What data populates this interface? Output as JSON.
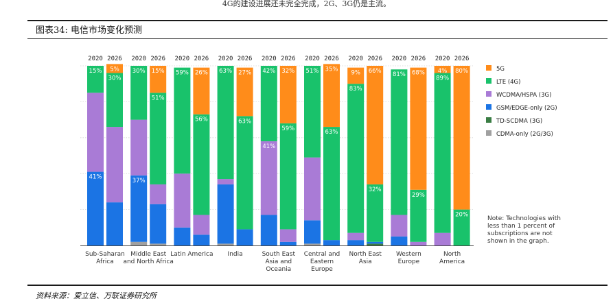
{
  "page": {
    "top_note": "4G的建设进展还未完全完成，2G、3G仍是主流。",
    "figure_title": "图表34: 电信市场变化预测",
    "source": "资料来源：爱立信、万联证券研究所"
  },
  "chart_data": {
    "type": "bar",
    "stacked": true,
    "title": "",
    "ylim": [
      0,
      100
    ],
    "years": [
      "2020",
      "2026"
    ],
    "categories": [
      "Sub-Saharan Africa",
      "Middle East and North Africa",
      "Latin America",
      "India",
      "South East Asia and Oceania",
      "Central and Eastern Europe",
      "North East Asia",
      "Western Europe",
      "North America"
    ],
    "category_labels": [
      [
        "Sub-Saharan",
        "Africa"
      ],
      [
        "Middle East",
        "and North Africa"
      ],
      [
        "Latin America"
      ],
      [
        "India"
      ],
      [
        "South East",
        "Asia and",
        "Oceania"
      ],
      [
        "Central and",
        "Eastern",
        "Europe"
      ],
      [
        "North East",
        "Asia"
      ],
      [
        "Western",
        "Europe"
      ],
      [
        "North",
        "America"
      ]
    ],
    "series": [
      {
        "name": "CDMA-only (2G/3G)",
        "color": "#a0a0a0",
        "values": [
          [
            0,
            0
          ],
          [
            2,
            1
          ],
          [
            0,
            0
          ],
          [
            1,
            0
          ],
          [
            0,
            0
          ],
          [
            1,
            0
          ],
          [
            0,
            0
          ],
          [
            0,
            0
          ],
          [
            0,
            0
          ]
        ]
      },
      {
        "name": "TD-SCDMA (3G)",
        "color": "#3a7d44",
        "values": [
          [
            0,
            0
          ],
          [
            0,
            0
          ],
          [
            0,
            0
          ],
          [
            0,
            0
          ],
          [
            0,
            0
          ],
          [
            0,
            0
          ],
          [
            0,
            1
          ],
          [
            0,
            0
          ],
          [
            0,
            0
          ]
        ]
      },
      {
        "name": "GSM/EDGE-only (2G)",
        "color": "#1b74e4",
        "values": [
          [
            41,
            24
          ],
          [
            37,
            22
          ],
          [
            10,
            6
          ],
          [
            33,
            9
          ],
          [
            17,
            2
          ],
          [
            13,
            3
          ],
          [
            3,
            1
          ],
          [
            5,
            0
          ],
          [
            0,
            0
          ]
        ]
      },
      {
        "name": "WCDMA/HSPA (3G)",
        "color": "#a97bd6",
        "values": [
          [
            44,
            42
          ],
          [
            31,
            11
          ],
          [
            30,
            11
          ],
          [
            3,
            0
          ],
          [
            41,
            7
          ],
          [
            35,
            0
          ],
          [
            4,
            0
          ],
          [
            12,
            2
          ],
          [
            7,
            0
          ]
        ]
      },
      {
        "name": "LTE (4G)",
        "color": "#19c26b",
        "values": [
          [
            15,
            30
          ],
          [
            30,
            51
          ],
          [
            59,
            56
          ],
          [
            63,
            63
          ],
          [
            42,
            59
          ],
          [
            51,
            63
          ],
          [
            83,
            32
          ],
          [
            81,
            29
          ],
          [
            89,
            20
          ]
        ]
      },
      {
        "name": "5G",
        "color": "#ff8c1a",
        "values": [
          [
            0,
            5
          ],
          [
            0,
            15
          ],
          [
            0,
            26
          ],
          [
            0,
            27
          ],
          [
            0,
            32
          ],
          [
            0,
            35
          ],
          [
            9,
            66
          ],
          [
            0,
            68
          ],
          [
            4,
            80
          ]
        ]
      }
    ],
    "data_labels": [
      [
        "15%",
        "5%"
      ],
      [
        "41%",
        "30%"
      ],
      [
        "30%",
        "15%"
      ],
      [
        "37%",
        "51%"
      ],
      [
        "59%",
        "26%"
      ],
      [
        "56%",
        ""
      ],
      [
        "63%",
        "27%"
      ],
      [
        "63%",
        ""
      ],
      [
        "42%",
        "32%"
      ],
      [
        "41%",
        "59%"
      ],
      [
        "51%",
        "35%"
      ],
      [
        "63%",
        ""
      ],
      [
        "9%",
        "66%"
      ],
      [
        "83%",
        "32%"
      ],
      [
        "81%",
        "68%"
      ],
      [
        "29%",
        ""
      ],
      [
        "4%",
        "80%"
      ],
      [
        "89%",
        "20%"
      ]
    ],
    "legend": [
      "5G",
      "LTE (4G)",
      "WCDMA/HSPA (3G)",
      "GSM/EDGE-only (2G)",
      "TD-SCDMA (3G)",
      "CDMA-only (2G/3G)"
    ],
    "legend_position": "right",
    "note": "Note: Technologies with less than 1 percent of subscriptions are not shown in the graph."
  },
  "colors": {
    "5G": "#ff8c1a",
    "LTE (4G)": "#19c26b",
    "WCDMA/HSPA (3G)": "#a97bd6",
    "GSM/EDGE-only (2G)": "#1b74e4",
    "TD-SCDMA (3G)": "#3a7d44",
    "CDMA-only (2G/3G)": "#a0a0a0"
  }
}
